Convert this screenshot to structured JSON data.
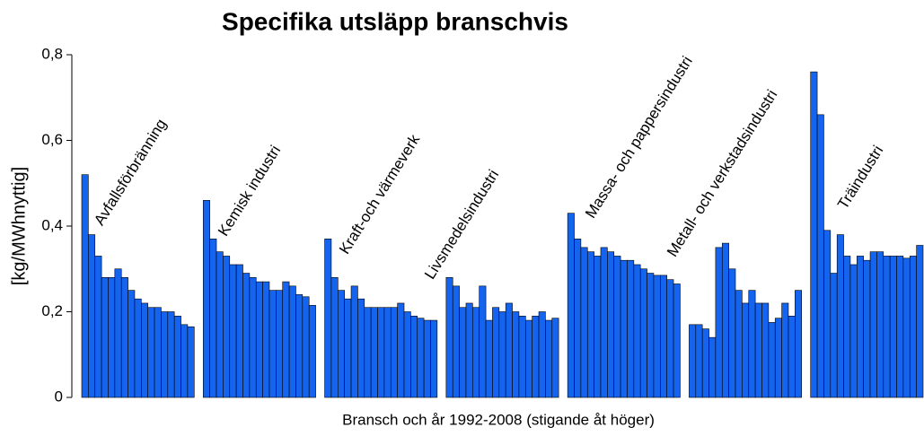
{
  "chart_data": {
    "type": "grouped-sequence-bar",
    "title": "Specifika utsläpp branschvis",
    "x_label": "Bransch och år 1992-2008 (stigande åt höger)",
    "y_label": "[kg/MWhnyttig]",
    "color": "#1464f0",
    "ylim": [
      0,
      0.8
    ],
    "yticks": [
      0,
      {
        "value": 0.2,
        "label": "0,2"
      },
      {
        "value": 0.4,
        "label": "0,4"
      },
      {
        "value": 0.6,
        "label": "0,6"
      },
      {
        "value": 0.8,
        "label": "0,8"
      }
    ],
    "series": [
      {
        "name": "Avfallsförbränning",
        "values": [
          0.52,
          0.38,
          0.33,
          0.28,
          0.28,
          0.3,
          0.28,
          0.25,
          0.23,
          0.22,
          0.21,
          0.21,
          0.2,
          0.2,
          0.19,
          0.17,
          0.165
        ]
      },
      {
        "name": "Kemisk industri",
        "values": [
          0.46,
          0.37,
          0.34,
          0.33,
          0.31,
          0.31,
          0.29,
          0.28,
          0.27,
          0.27,
          0.25,
          0.25,
          0.27,
          0.26,
          0.24,
          0.235,
          0.215
        ]
      },
      {
        "name": "Kraft-och värmeverk",
        "values": [
          0.37,
          0.28,
          0.25,
          0.23,
          0.26,
          0.23,
          0.21,
          0.21,
          0.21,
          0.21,
          0.21,
          0.22,
          0.2,
          0.19,
          0.185,
          0.18,
          0.18
        ]
      },
      {
        "name": "Livsmedelsindustri",
        "values": [
          0.28,
          0.26,
          0.21,
          0.22,
          0.21,
          0.26,
          0.18,
          0.21,
          0.2,
          0.22,
          0.2,
          0.19,
          0.18,
          0.19,
          0.2,
          0.18,
          0.185
        ]
      },
      {
        "name": "Massa- och pappersindustri",
        "values": [
          0.43,
          0.37,
          0.35,
          0.34,
          0.33,
          0.35,
          0.34,
          0.33,
          0.32,
          0.32,
          0.31,
          0.3,
          0.29,
          0.285,
          0.285,
          0.275,
          0.265
        ]
      },
      {
        "name": "Metall- och verkstadsindustri",
        "values": [
          0.17,
          0.17,
          0.16,
          0.14,
          0.35,
          0.36,
          0.3,
          0.25,
          0.22,
          0.25,
          0.22,
          0.22,
          0.175,
          0.185,
          0.22,
          0.19,
          0.25
        ]
      },
      {
        "name": "Träindustri",
        "values": [
          0.76,
          0.66,
          0.39,
          0.29,
          0.38,
          0.33,
          0.31,
          0.33,
          0.32,
          0.34,
          0.34,
          0.33,
          0.33,
          0.33,
          0.325,
          0.33,
          0.355
        ]
      }
    ]
  }
}
